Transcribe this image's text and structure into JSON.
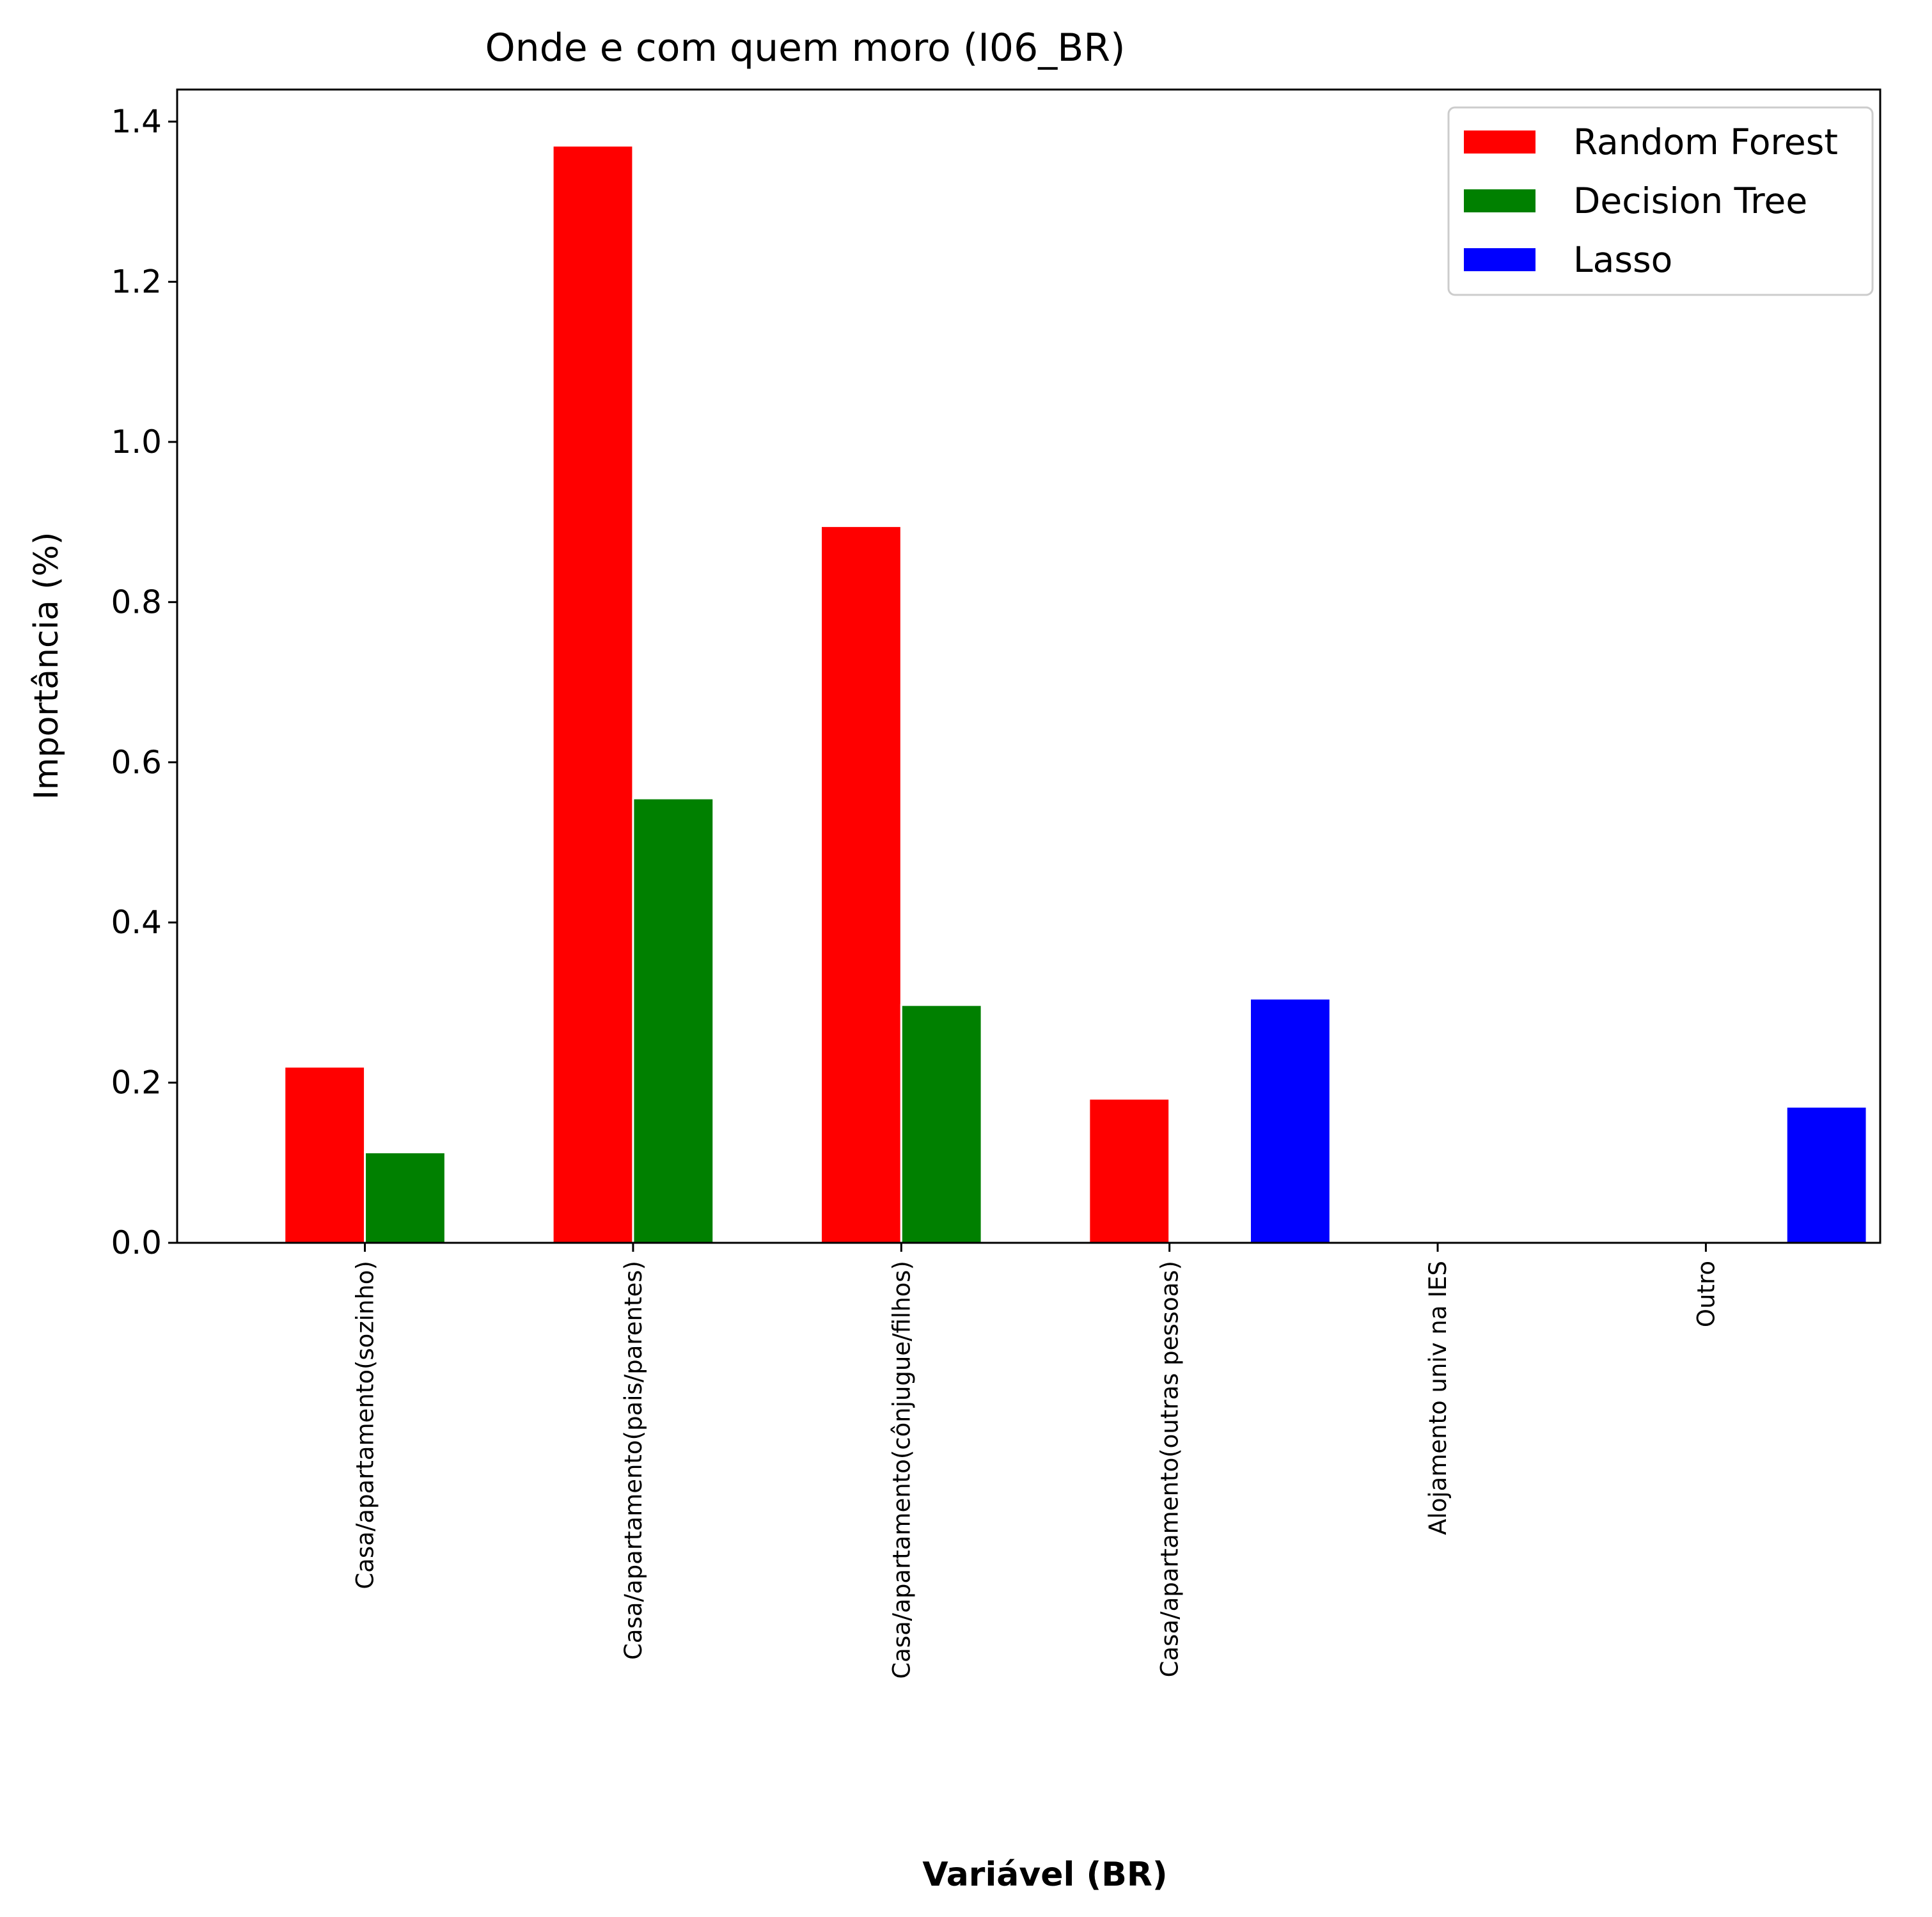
{
  "chart_data": {
    "type": "bar",
    "title": "Onde e com quem moro (I06_BR)",
    "xlabel": "Variável (BR)",
    "ylabel": "Importância (%)",
    "categories": [
      "Casa/apartamento(sozinho)",
      "Casa/apartamento(pais/parentes)",
      "Casa/apartamento(cônjugue/filhos)",
      "Casa/apartamento(outras pessoas)",
      "Alojamento univ na IES",
      "Outro"
    ],
    "series": [
      {
        "name": "Random Forest",
        "color": "#ff0000",
        "values": [
          0.22,
          1.37,
          0.895,
          0.18,
          0,
          0
        ]
      },
      {
        "name": "Decision Tree",
        "color": "#008000",
        "values": [
          0.113,
          0.555,
          0.297,
          0,
          0,
          0
        ]
      },
      {
        "name": "Lasso",
        "color": "#0000ff",
        "values": [
          0,
          0,
          0,
          0.305,
          0,
          0.17
        ]
      }
    ],
    "bar_positions": [
      [
        0.7,
        2.7,
        4.7,
        6.7,
        null,
        null
      ],
      [
        1.3,
        3.3,
        5.3,
        null,
        null,
        null
      ],
      [
        null,
        null,
        null,
        7.9,
        null,
        11.9
      ]
    ],
    "ylim": [
      0,
      1.44
    ],
    "yticks": [
      "0.0",
      "0.2",
      "0.4",
      "0.6",
      "0.8",
      "1.0",
      "1.2",
      "1.4"
    ],
    "legend_position": "top-right",
    "grid": false
  }
}
